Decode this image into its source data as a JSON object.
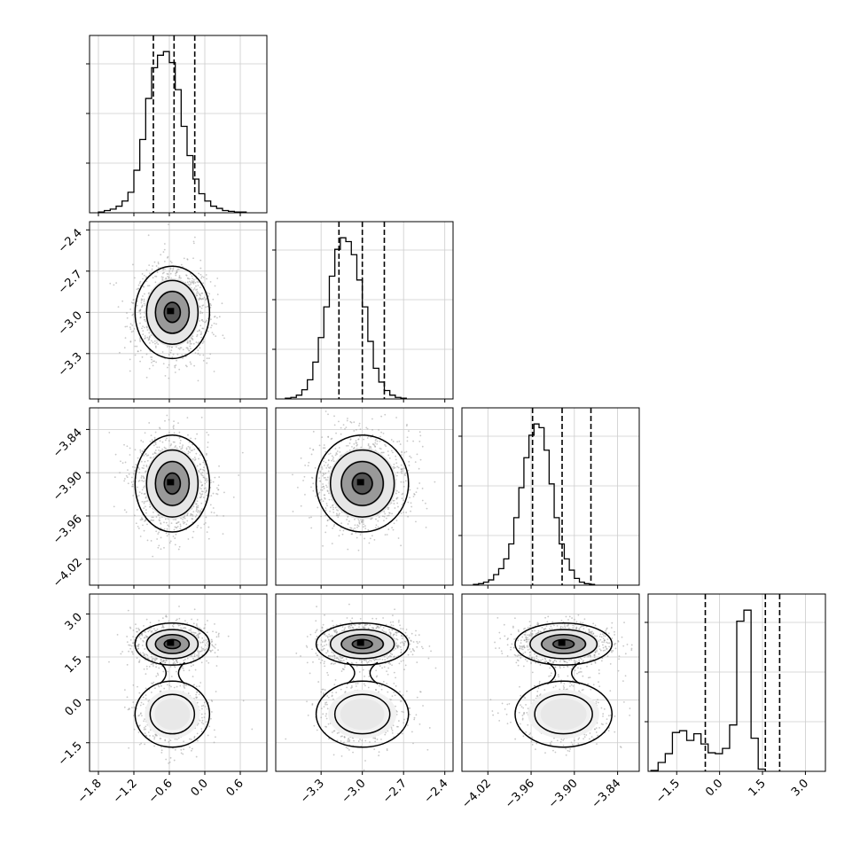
{
  "chart_data": {
    "type": "corner",
    "parameters": [
      {
        "range": [
          -1.95,
          1.05
        ],
        "ticks": [
          -1.8,
          -1.2,
          -0.6,
          0.0,
          0.6
        ],
        "tick_labels": [
          "−1.8",
          "−1.2",
          "−0.6",
          "0.0",
          "0.6"
        ]
      },
      {
        "range": [
          -3.63,
          -2.34
        ],
        "ticks": [
          -3.3,
          -3.0,
          -2.7,
          -2.4
        ],
        "tick_labels": [
          "−3.3",
          "−3.0",
          "−2.7",
          "−2.4"
        ]
      },
      {
        "range": [
          -4.056,
          -3.81
        ],
        "ticks": [
          -4.02,
          -3.96,
          -3.9,
          -3.84
        ],
        "tick_labels": [
          "−4.02",
          "−3.96",
          "−3.90",
          "−3.84"
        ]
      },
      {
        "range": [
          -2.5,
          3.7
        ],
        "ticks": [
          -1.5,
          0.0,
          1.5,
          3.0
        ],
        "tick_labels": [
          "−1.5",
          "0.0",
          "1.5",
          "3.0"
        ]
      }
    ],
    "quantiles": [
      [
        -0.87,
        -0.52,
        -0.17
      ],
      [
        -3.17,
        -3.0,
        -2.84
      ],
      [
        -3.958,
        -3.917,
        -3.877
      ],
      [
        -0.5,
        1.6,
        2.1
      ]
    ],
    "histograms": [
      {
        "start": -1.8,
        "step": 0.1,
        "counts": [
          1,
          3,
          5,
          9,
          16,
          28,
          58,
          100,
          156,
          198,
          215,
          220,
          205,
          168,
          118,
          78,
          46,
          26,
          16,
          9,
          6,
          3,
          2,
          1,
          1
        ]
      },
      {
        "start": -3.56,
        "step": 0.04,
        "counts": [
          1,
          2,
          5,
          12,
          25,
          48,
          80,
          120,
          160,
          195,
          210,
          205,
          188,
          155,
          120,
          75,
          40,
          22,
          11,
          5,
          2,
          1
        ]
      },
      {
        "start": -4.04,
        "step": 0.007,
        "counts": [
          1,
          2,
          4,
          7,
          14,
          22,
          35,
          55,
          90,
          130,
          170,
          200,
          215,
          210,
          180,
          135,
          90,
          55,
          35,
          20,
          9,
          4,
          2,
          1
        ]
      },
      {
        "start": -2.4,
        "step": 0.25,
        "counts": [
          2,
          20,
          40,
          88,
          92,
          70,
          85,
          62,
          42,
          40,
          52,
          105,
          340,
          365,
          75,
          5
        ]
      }
    ],
    "blobs": [
      {
        "row": 1,
        "col": 0,
        "modes": [
          {
            "cx": -0.55,
            "cy": -3.0,
            "sx": 0.3,
            "sy": 0.16,
            "w": 1
          }
        ],
        "n": 1200
      },
      {
        "row": 2,
        "col": 0,
        "modes": [
          {
            "cx": -0.55,
            "cy": -3.915,
            "sx": 0.3,
            "sy": 0.032,
            "w": 1
          }
        ],
        "n": 1200
      },
      {
        "row": 2,
        "col": 1,
        "modes": [
          {
            "cx": -3.0,
            "cy": -3.915,
            "sx": 0.16,
            "sy": 0.032,
            "w": 1
          }
        ],
        "n": 1200
      },
      {
        "row": 3,
        "col": 0,
        "modes": [
          {
            "cx": -0.55,
            "cy": 1.95,
            "sx": 0.3,
            "sy": 0.35,
            "w": 0.65
          },
          {
            "cx": -0.55,
            "cy": -0.5,
            "sx": 0.3,
            "sy": 0.55,
            "w": 0.35
          }
        ],
        "n": 1500
      },
      {
        "row": 3,
        "col": 1,
        "modes": [
          {
            "cx": -3.0,
            "cy": 1.95,
            "sx": 0.16,
            "sy": 0.35,
            "w": 0.65
          },
          {
            "cx": -3.0,
            "cy": -0.5,
            "sx": 0.16,
            "sy": 0.55,
            "w": 0.35
          }
        ],
        "n": 1500
      },
      {
        "row": 3,
        "col": 2,
        "modes": [
          {
            "cx": -3.915,
            "cy": 1.95,
            "sx": 0.032,
            "sy": 0.35,
            "w": 0.65
          },
          {
            "cx": -3.915,
            "cy": -0.5,
            "sx": 0.032,
            "sy": 0.55,
            "w": 0.35
          }
        ],
        "n": 1500
      }
    ],
    "grid": true,
    "colors": {
      "line": "#000000",
      "points": "#9a9a9a",
      "grid": "#cccccc"
    }
  }
}
